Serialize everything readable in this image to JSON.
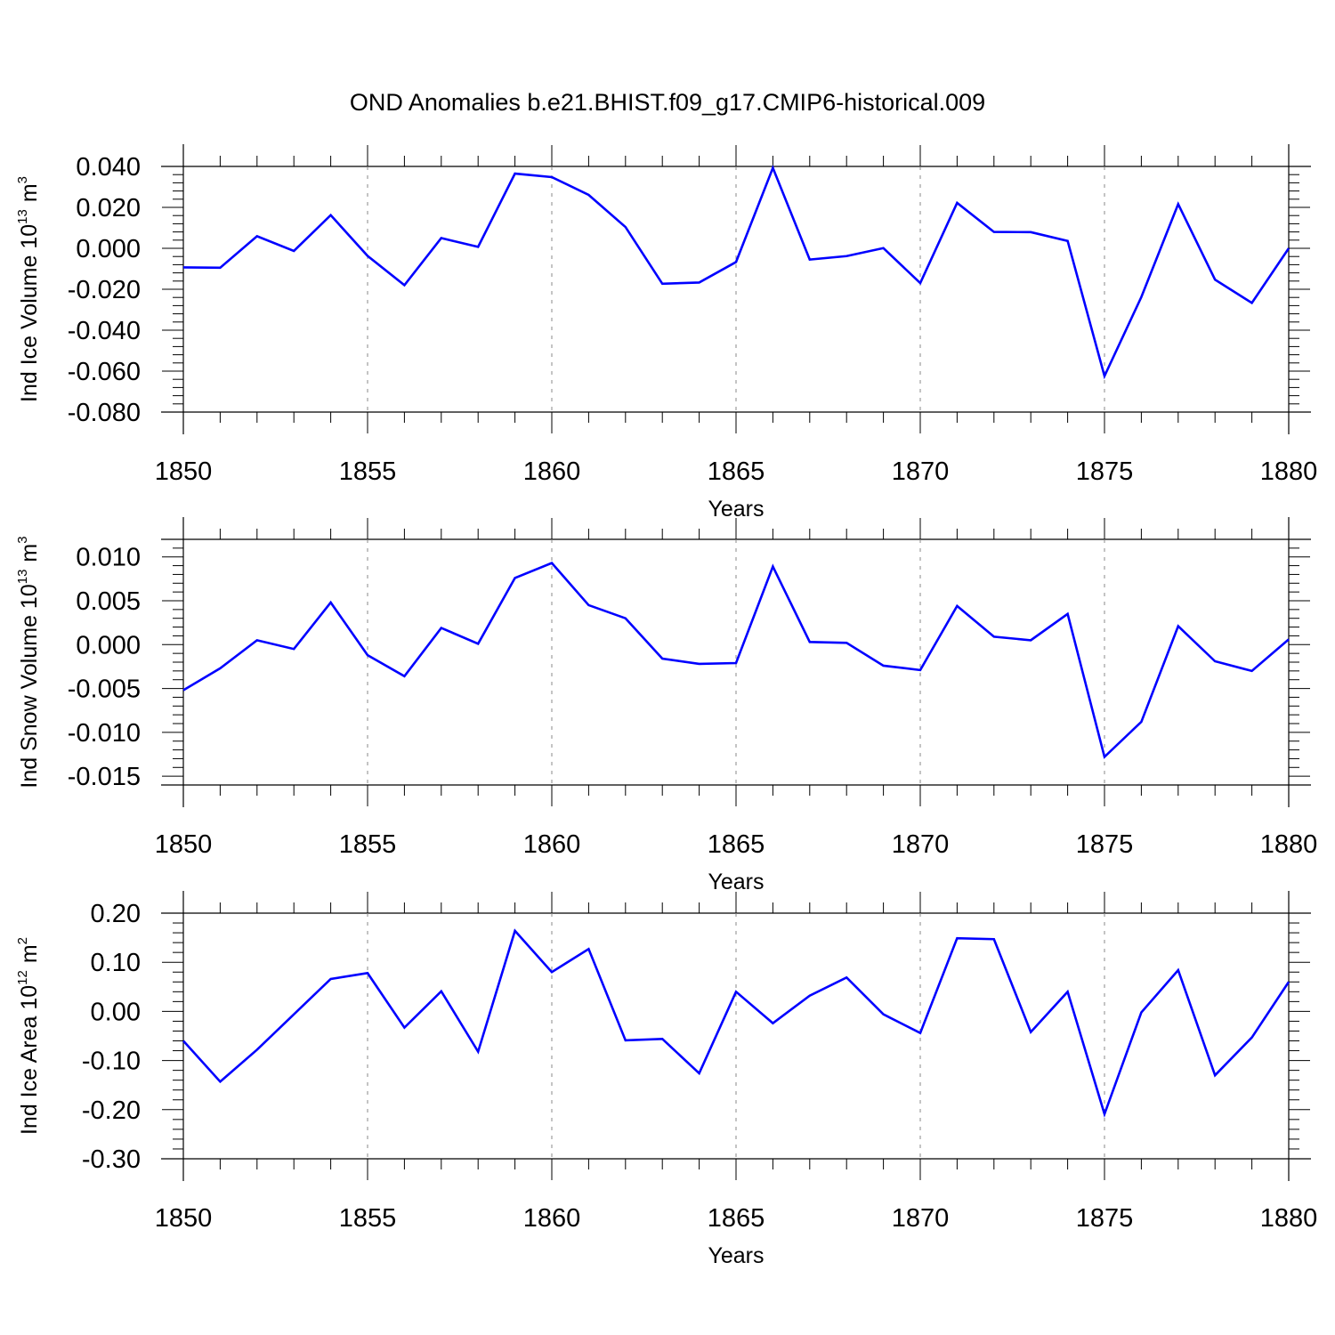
{
  "title": "OND Anomalies b.e21.BHIST.f09_g17.CMIP6-historical.009",
  "colors": {
    "line": "#0000ff",
    "axis": "#000000",
    "grid": "#888888"
  },
  "chart_data": [
    {
      "type": "line",
      "name": "ice-volume",
      "ylabel_prefix": "Ind Ice Volume 10",
      "ylabel_exp": "13",
      "ylabel_unit": "m",
      "ylabel_unit_exp": "3",
      "xlabel": "Years",
      "xlim": [
        1850,
        1880
      ],
      "ylim": [
        -0.08,
        0.04
      ],
      "grid": "vertical-dashed",
      "x_ticks": [
        "1850",
        "1855",
        "1860",
        "1865",
        "1870",
        "1875",
        "1880"
      ],
      "y_ticks": [
        "0.040",
        "0.020",
        "0.000",
        "-0.020",
        "-0.040",
        "-0.060",
        "-0.080"
      ],
      "x": [
        1850,
        1851,
        1852,
        1853,
        1854,
        1855,
        1856,
        1857,
        1858,
        1859,
        1860,
        1861,
        1862,
        1863,
        1864,
        1865,
        1866,
        1867,
        1868,
        1869,
        1870,
        1871,
        1872,
        1873,
        1874,
        1875,
        1876,
        1877,
        1878,
        1879,
        1880
      ],
      "values": [
        -0.0093,
        -0.0095,
        0.0059,
        -0.0013,
        0.0162,
        -0.0037,
        -0.018,
        0.005,
        0.0007,
        0.0365,
        0.0348,
        0.0261,
        0.0104,
        -0.0173,
        -0.0167,
        -0.0067,
        0.0393,
        -0.0055,
        -0.0038,
        0.0001,
        -0.017,
        0.0222,
        0.008,
        0.0079,
        0.0036,
        -0.0624,
        -0.0238,
        0.0216,
        -0.0153,
        -0.0267,
        0.0
      ]
    },
    {
      "type": "line",
      "name": "snow-volume",
      "ylabel_prefix": "Ind Snow Volume 10",
      "ylabel_exp": "13",
      "ylabel_unit": "m",
      "ylabel_unit_exp": "3",
      "xlabel": "Years",
      "xlim": [
        1850,
        1880
      ],
      "ylim": [
        -0.016,
        0.012
      ],
      "grid": "vertical-dashed",
      "x_ticks": [
        "1850",
        "1855",
        "1860",
        "1865",
        "1870",
        "1875",
        "1880"
      ],
      "y_ticks": [
        "0.010",
        "0.005",
        "0.000",
        "-0.005",
        "-0.010",
        "-0.015"
      ],
      "x": [
        1850,
        1851,
        1852,
        1853,
        1854,
        1855,
        1856,
        1857,
        1858,
        1859,
        1860,
        1861,
        1862,
        1863,
        1864,
        1865,
        1866,
        1867,
        1868,
        1869,
        1870,
        1871,
        1872,
        1873,
        1874,
        1875,
        1876,
        1877,
        1878,
        1879,
        1880
      ],
      "values": [
        -0.0052,
        -0.0027,
        0.0005,
        -0.0005,
        0.0048,
        -0.0012,
        -0.0036,
        0.0019,
        0.0001,
        0.0076,
        0.0093,
        0.0045,
        0.003,
        -0.0016,
        -0.0022,
        -0.0021,
        0.0089,
        0.0003,
        0.0002,
        -0.0024,
        -0.0029,
        0.0044,
        0.0009,
        0.0005,
        0.0035,
        -0.0128,
        -0.0088,
        0.0021,
        -0.0019,
        -0.003,
        0.0006
      ]
    },
    {
      "type": "line",
      "name": "ice-area",
      "ylabel_prefix": "Ind Ice Area 10",
      "ylabel_exp": "12",
      "ylabel_unit": "m",
      "ylabel_unit_exp": "2",
      "xlabel": "Years",
      "xlim": [
        1850,
        1880
      ],
      "ylim": [
        -0.3,
        0.2
      ],
      "grid": "vertical-dashed",
      "x_ticks": [
        "1850",
        "1855",
        "1860",
        "1865",
        "1870",
        "1875",
        "1880"
      ],
      "y_ticks": [
        "0.20",
        "0.10",
        "0.00",
        "-0.10",
        "-0.20",
        "-0.30"
      ],
      "x": [
        1850,
        1851,
        1852,
        1853,
        1854,
        1855,
        1856,
        1857,
        1858,
        1859,
        1860,
        1861,
        1862,
        1863,
        1864,
        1865,
        1866,
        1867,
        1868,
        1869,
        1870,
        1871,
        1872,
        1873,
        1874,
        1875,
        1876,
        1877,
        1878,
        1879,
        1880
      ],
      "values": [
        -0.06,
        -0.143,
        -0.078,
        -0.006,
        0.066,
        0.078,
        -0.033,
        0.041,
        -0.082,
        0.164,
        0.08,
        0.127,
        -0.059,
        -0.056,
        -0.126,
        0.04,
        -0.024,
        0.032,
        0.069,
        -0.006,
        -0.044,
        0.149,
        0.147,
        -0.042,
        0.04,
        -0.209,
        -0.002,
        0.084,
        -0.13,
        -0.053,
        0.06
      ]
    }
  ]
}
